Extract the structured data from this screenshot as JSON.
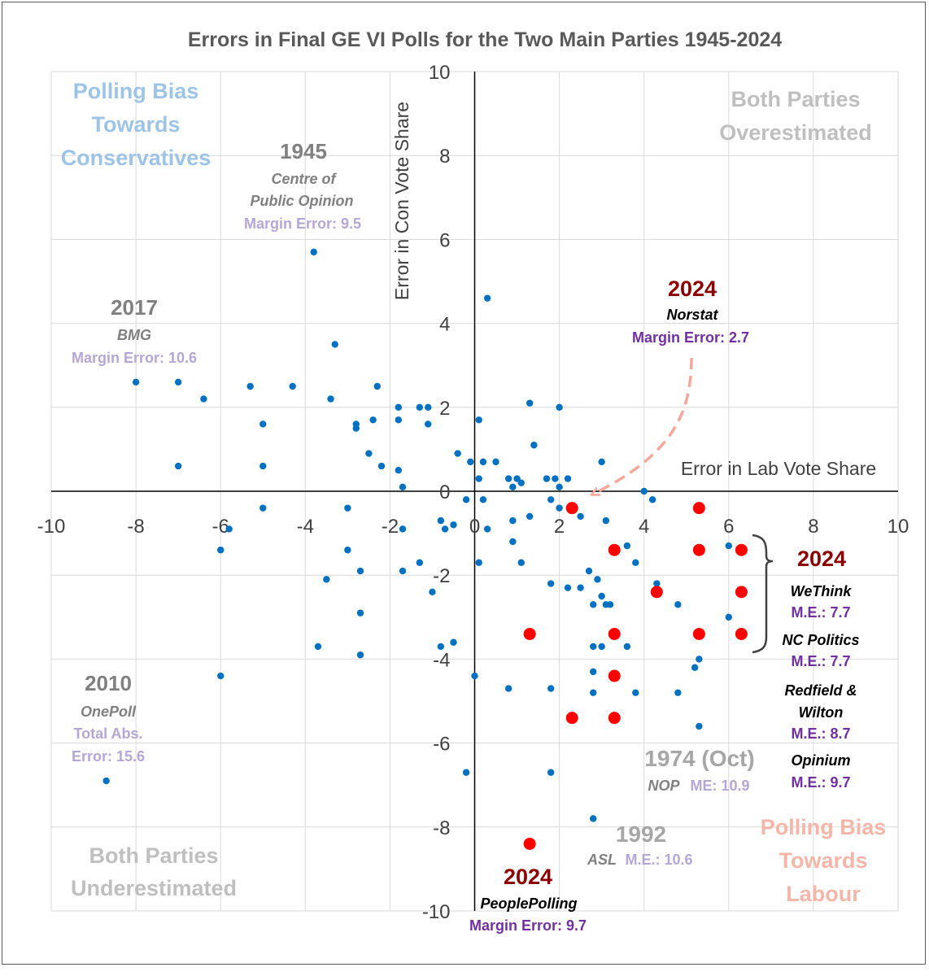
{
  "chart_data": {
    "type": "scatter",
    "title": "Errors in Final GE VI Polls for the Two Main Parties 1945-2024",
    "xlabel": "Error in Lab Vote Share",
    "ylabel": "Error in Con Vote Share",
    "xlim": [
      -10,
      10
    ],
    "ylim": [
      -10,
      10
    ],
    "xticks": [
      "-10",
      "-8",
      "-6",
      "-4",
      "-2",
      "0",
      "2",
      "4",
      "6",
      "8",
      "10"
    ],
    "yticks": [
      "-10",
      "-8",
      "-6",
      "-4",
      "-2",
      "0",
      "2",
      "4",
      "6",
      "8",
      "10"
    ],
    "grid": true,
    "colors": {
      "historic": "#0070C0",
      "poll_2024": "#FF0000",
      "arrow": "#F4A79A"
    },
    "series": [
      {
        "name": "Historic polls 1945-2019",
        "points": [
          [
            -3.8,
            5.7
          ],
          [
            0.3,
            4.6
          ],
          [
            -3.3,
            3.5
          ],
          [
            -8.0,
            2.6
          ],
          [
            -7.0,
            2.6
          ],
          [
            -6.4,
            2.2
          ],
          [
            -5.3,
            2.5
          ],
          [
            -4.3,
            2.5
          ],
          [
            -3.4,
            2.2
          ],
          [
            -2.3,
            2.5
          ],
          [
            -5.0,
            1.6
          ],
          [
            -2.8,
            1.6
          ],
          [
            -2.8,
            1.5
          ],
          [
            -2.4,
            1.7
          ],
          [
            -1.8,
            2.0
          ],
          [
            -1.8,
            1.7
          ],
          [
            -1.3,
            2.0
          ],
          [
            -1.1,
            2.0
          ],
          [
            -1.1,
            1.6
          ],
          [
            1.3,
            2.1
          ],
          [
            2.0,
            2.0
          ],
          [
            0.1,
            1.7
          ],
          [
            -7.0,
            0.6
          ],
          [
            -5.0,
            0.6
          ],
          [
            -2.5,
            0.9
          ],
          [
            -2.2,
            0.6
          ],
          [
            -1.8,
            0.5
          ],
          [
            -1.7,
            0.1
          ],
          [
            -0.4,
            0.9
          ],
          [
            -0.1,
            0.7
          ],
          [
            0.2,
            0.7
          ],
          [
            0.5,
            0.7
          ],
          [
            0.1,
            0.3
          ],
          [
            0.8,
            0.3
          ],
          [
            1.0,
            0.3
          ],
          [
            1.1,
            0.2
          ],
          [
            0.9,
            0.1
          ],
          [
            1.4,
            1.1
          ],
          [
            1.7,
            0.3
          ],
          [
            1.9,
            0.3
          ],
          [
            2.2,
            0.3
          ],
          [
            2.0,
            0.1
          ],
          [
            3.0,
            0.7
          ],
          [
            4.0,
            0.0
          ],
          [
            -5.0,
            -0.4
          ],
          [
            -3.0,
            -0.4
          ],
          [
            -5.8,
            -0.9
          ],
          [
            -6.0,
            -1.4
          ],
          [
            -1.7,
            -0.9
          ],
          [
            -0.8,
            -0.7
          ],
          [
            -0.7,
            -0.9
          ],
          [
            -0.2,
            -0.2
          ],
          [
            0.2,
            -0.2
          ],
          [
            0.3,
            -0.9
          ],
          [
            0.9,
            -0.7
          ],
          [
            1.3,
            -0.6
          ],
          [
            1.8,
            -0.2
          ],
          [
            2.0,
            -0.4
          ],
          [
            2.5,
            -0.6
          ],
          [
            3.1,
            -0.7
          ],
          [
            4.2,
            -0.2
          ],
          [
            0.9,
            -1.2
          ],
          [
            1.1,
            -1.7
          ],
          [
            0.1,
            -1.7
          ],
          [
            -0.5,
            -0.8
          ],
          [
            -1.3,
            -1.7
          ],
          [
            -3.5,
            -2.1
          ],
          [
            -3.0,
            -1.4
          ],
          [
            -2.7,
            -1.9
          ],
          [
            -1.7,
            -1.9
          ],
          [
            -1.0,
            -2.4
          ],
          [
            -2.7,
            -2.9
          ],
          [
            -3.7,
            -3.7
          ],
          [
            -2.7,
            -3.9
          ],
          [
            -0.8,
            -3.7
          ],
          [
            -0.5,
            -3.6
          ],
          [
            0.0,
            -4.4
          ],
          [
            0.8,
            -4.7
          ],
          [
            1.8,
            -4.7
          ],
          [
            1.8,
            -2.2
          ],
          [
            2.2,
            -2.3
          ],
          [
            2.5,
            -2.3
          ],
          [
            2.7,
            -1.9
          ],
          [
            2.9,
            -2.1
          ],
          [
            2.8,
            -2.7
          ],
          [
            3.0,
            -2.5
          ],
          [
            3.2,
            -2.7
          ],
          [
            3.1,
            -2.7
          ],
          [
            3.6,
            -1.3
          ],
          [
            3.8,
            -1.7
          ],
          [
            4.3,
            -2.2
          ],
          [
            4.8,
            -2.7
          ],
          [
            3.0,
            -3.7
          ],
          [
            2.8,
            -3.7
          ],
          [
            3.6,
            -3.7
          ],
          [
            2.8,
            -4.3
          ],
          [
            2.8,
            -4.8
          ],
          [
            3.8,
            -4.8
          ],
          [
            4.8,
            -4.8
          ],
          [
            5.2,
            -4.2
          ],
          [
            5.3,
            -4.0
          ],
          [
            5.3,
            -5.6
          ],
          [
            6.0,
            -3.0
          ],
          [
            6.0,
            -1.3
          ],
          [
            -6.0,
            -4.4
          ],
          [
            -0.2,
            -6.7
          ],
          [
            1.8,
            -6.7
          ],
          [
            2.8,
            -7.8
          ],
          [
            -8.7,
            -6.9
          ]
        ]
      },
      {
        "name": "2024 polls",
        "points": [
          [
            2.3,
            -0.4
          ],
          [
            5.3,
            -0.4
          ],
          [
            3.3,
            -1.4
          ],
          [
            5.3,
            -1.4
          ],
          [
            6.3,
            -1.4
          ],
          [
            4.3,
            -2.4
          ],
          [
            6.3,
            -2.4
          ],
          [
            1.3,
            -3.4
          ],
          [
            3.3,
            -3.4
          ],
          [
            5.3,
            -3.4
          ],
          [
            6.3,
            -3.4
          ],
          [
            3.3,
            -4.4
          ],
          [
            2.3,
            -5.4
          ],
          [
            3.3,
            -5.4
          ],
          [
            1.3,
            -8.4
          ]
        ]
      }
    ],
    "quadrant_labels": {
      "top_left": [
        "Polling Bias",
        "Towards",
        "Conservatives"
      ],
      "top_right": [
        "Both Parties",
        "Overestimated"
      ],
      "bottom_left": [
        "Both Parties",
        "Underestimated"
      ],
      "bottom_right": [
        "Polling Bias",
        "Towards",
        "Labour"
      ]
    },
    "annotations": {
      "y1945": {
        "year": "1945",
        "pollster_line1": "Centre of",
        "pollster_line2": "Public Opinion",
        "error": "Margin Error: 9.5"
      },
      "y2017": {
        "year": "2017",
        "pollster": "BMG",
        "error": "Margin Error: 10.6"
      },
      "y2010": {
        "year": "2010",
        "pollster": "OnePoll",
        "error_line1": "Total Abs.",
        "error_line2": "Error: 15.6"
      },
      "y2024_norstat": {
        "year": "2024",
        "pollster": "Norstat",
        "error": "Margin Error: 2.7"
      },
      "y2024_group": {
        "year": "2024",
        "pollsters": [
          {
            "name": "WeThink",
            "error": "M.E.: 7.7"
          },
          {
            "name": "NC Politics",
            "error": "M.E.: 7.7"
          },
          {
            "name_line1": "Redfield &",
            "name_line2": "Wilton",
            "error": "M.E.: 8.7"
          },
          {
            "name": "Opinium",
            "error": "M.E.: 9.7"
          }
        ]
      },
      "y1974": {
        "year": "1974 (Oct)",
        "pollster": "NOP",
        "error": "ME: 10.9"
      },
      "y1992": {
        "year": "1992",
        "pollster": "ASL",
        "error": "M.E.: 10.6"
      },
      "y2024_peoplepolling": {
        "year": "2024",
        "pollster": "PeoplePolling",
        "error": "Margin Error: 9.7"
      }
    }
  }
}
